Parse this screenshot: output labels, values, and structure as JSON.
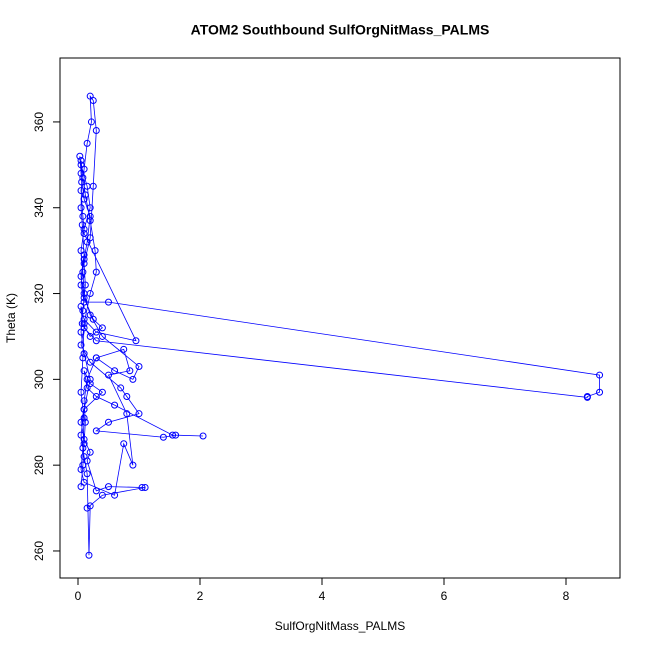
{
  "chart_data": {
    "type": "line",
    "markers": true,
    "title": "ATOM2 Southbound SulfOrgNitMass_PALMS",
    "x_label": "SulfOrgNitMass_PALMS",
    "y_label": "Theta (K)",
    "color": "#0000ff",
    "xlim": [
      -0.295,
      8.885
    ],
    "ylim": [
      253.7,
      374.9
    ],
    "xticks": [
      0,
      2,
      4,
      6,
      8
    ],
    "yticks": [
      260,
      280,
      300,
      320,
      340,
      360
    ],
    "x": [
      0.05,
      0.08,
      0.1,
      0.12,
      0.1,
      0.15,
      0.3,
      0.6,
      0.9,
      1.0,
      0.4,
      0.2,
      0.1,
      0.08,
      0.05,
      0.1,
      0.2,
      0.15,
      0.05,
      0.03,
      0.05,
      0.1,
      0.2,
      0.15,
      0.1,
      0.05,
      0.1,
      0.5,
      8.55,
      8.55,
      8.35,
      8.35,
      0.3,
      0.1,
      0.05,
      0.2,
      0.7,
      0.8,
      1.0,
      0.5,
      0.3,
      1.4,
      1.6,
      2.05,
      1.55,
      0.6,
      0.3,
      0.15,
      0.1,
      0.2,
      0.4,
      0.1,
      0.05,
      0.1,
      0.2,
      0.15,
      0.3,
      0.5,
      1.05,
      1.1,
      0.4,
      0.15,
      0.2,
      0.18,
      0.15,
      0.1,
      0.05,
      0.1,
      0.2,
      0.1,
      0.05,
      0.08,
      0.12,
      0.1,
      0.2,
      0.25,
      0.3,
      0.25,
      0.2,
      0.22,
      0.15,
      0.1,
      0.05,
      0.08,
      0.1,
      0.95,
      0.3,
      0.1,
      0.05,
      0.07,
      0.2,
      0.4,
      0.25,
      0.1,
      0.05,
      0.1,
      0.07,
      0.05,
      0.06,
      0.05,
      0.08,
      0.12,
      0.2,
      0.28,
      0.3,
      0.2,
      0.1,
      0.08,
      0.05,
      0.1,
      0.08,
      0.05,
      0.1,
      0.6,
      0.75,
      0.9,
      0.8,
      0.5,
      0.85,
      0.75,
      0.3
    ],
    "y": [
      275,
      280,
      285,
      290,
      295,
      300,
      305,
      302,
      300,
      303,
      310,
      315,
      320,
      325,
      330,
      335,
      340,
      345,
      350,
      352,
      348,
      342,
      338,
      332,
      328,
      322,
      318,
      318,
      301,
      297,
      296,
      295.8,
      309,
      312,
      308,
      304,
      298,
      296,
      292,
      290,
      288,
      286.5,
      287,
      286.8,
      287,
      294,
      296,
      298,
      302,
      299,
      297,
      293,
      290,
      286,
      283,
      281,
      274,
      275,
      274.8,
      274.8,
      273,
      270,
      270.5,
      259,
      278,
      282,
      287,
      293,
      300,
      306,
      311,
      316,
      322,
      327,
      333,
      345,
      358,
      365,
      366,
      360,
      355,
      349,
      344,
      338,
      334,
      309,
      311,
      314,
      317,
      313,
      310,
      312,
      314,
      319,
      324,
      329,
      336,
      340,
      346,
      351,
      347,
      343,
      337,
      330,
      325,
      320,
      313,
      305,
      297,
      291,
      284,
      279,
      276,
      273,
      285,
      280,
      292,
      301,
      302,
      307,
      305
    ]
  }
}
